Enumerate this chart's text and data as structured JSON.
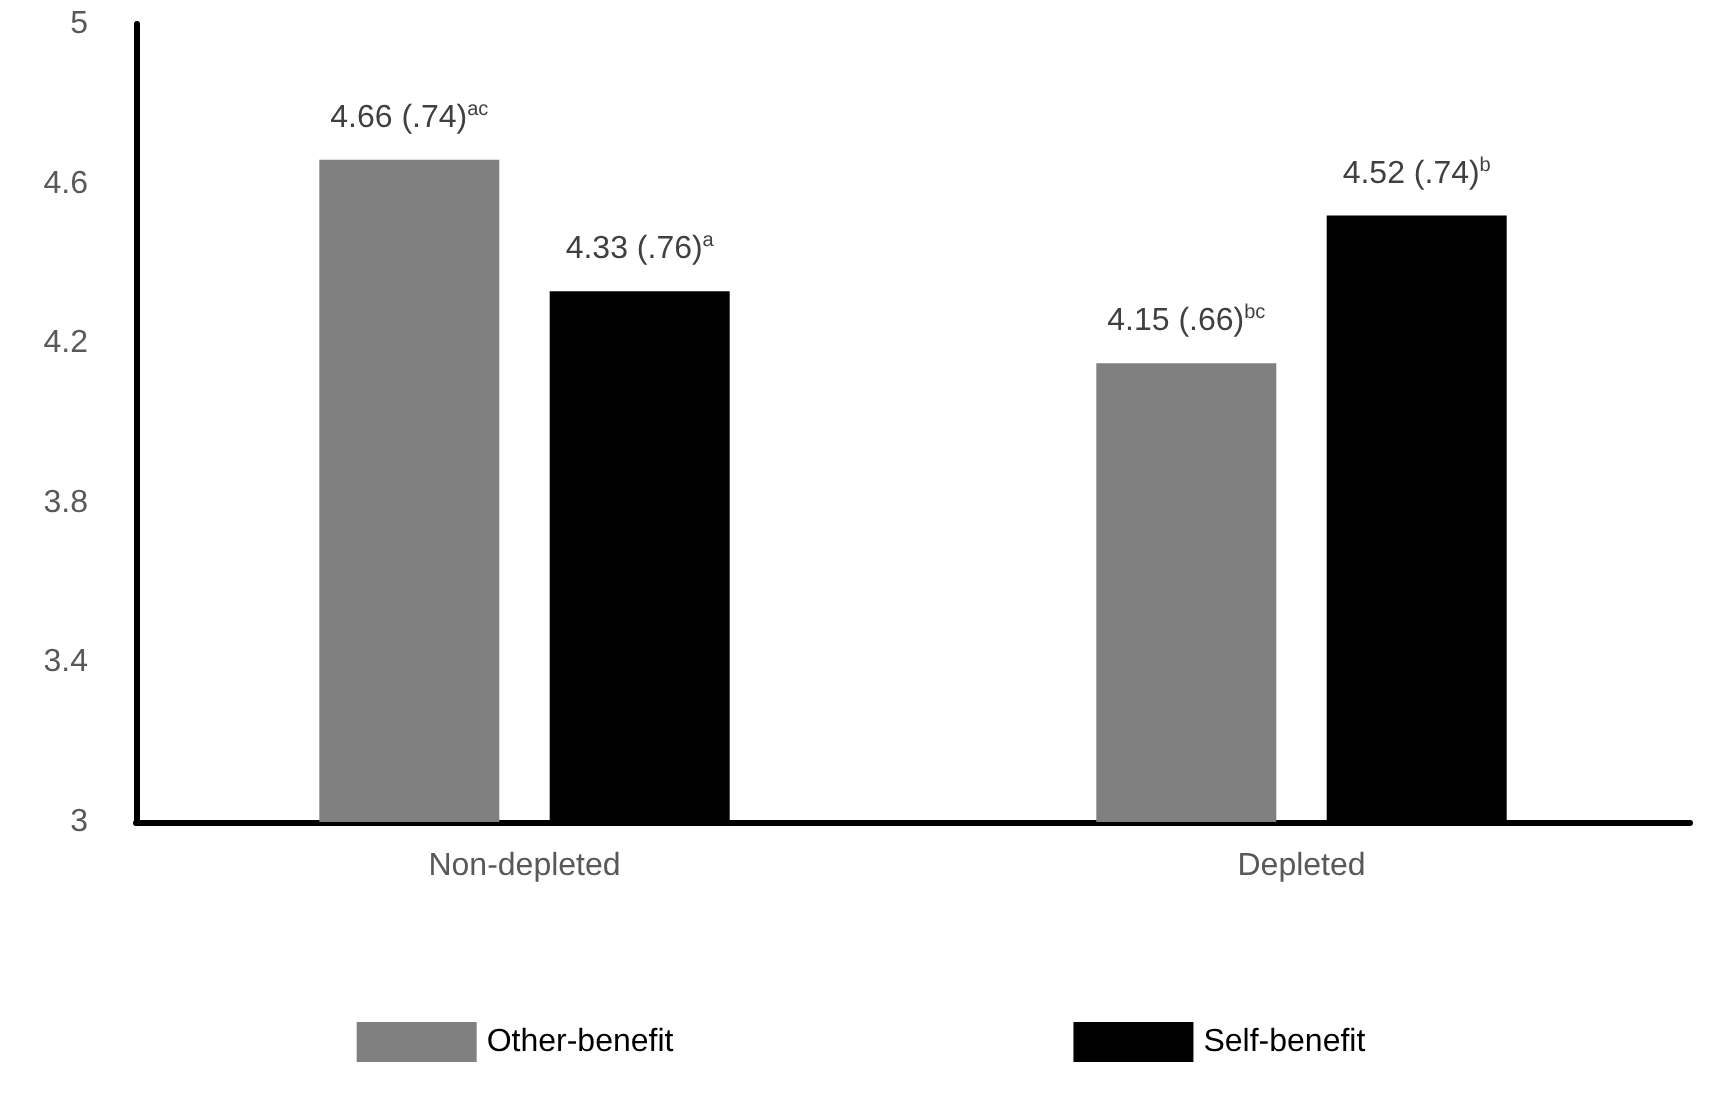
{
  "chart_data": {
    "type": "bar",
    "categories": [
      "Non-depleted",
      "Depleted"
    ],
    "series": [
      {
        "name": "Other-benefit",
        "color": "#808080",
        "values": [
          4.66,
          4.15
        ],
        "value_labels": [
          "4.66 (.74)$^{ac}$",
          "4.15 (.66)$^{bc}$"
        ]
      },
      {
        "name": "Self-benefit",
        "color": "#000000",
        "values": [
          4.33,
          4.52
        ],
        "value_labels": [
          "4.33 (.76)$^{a}$",
          "4.52 (.74)$^{b}$"
        ]
      }
    ],
    "ylim": [
      3,
      5
    ],
    "yticks": [
      3,
      3.4,
      3.8,
      4.2,
      4.6,
      5
    ],
    "legend": "bottom"
  }
}
